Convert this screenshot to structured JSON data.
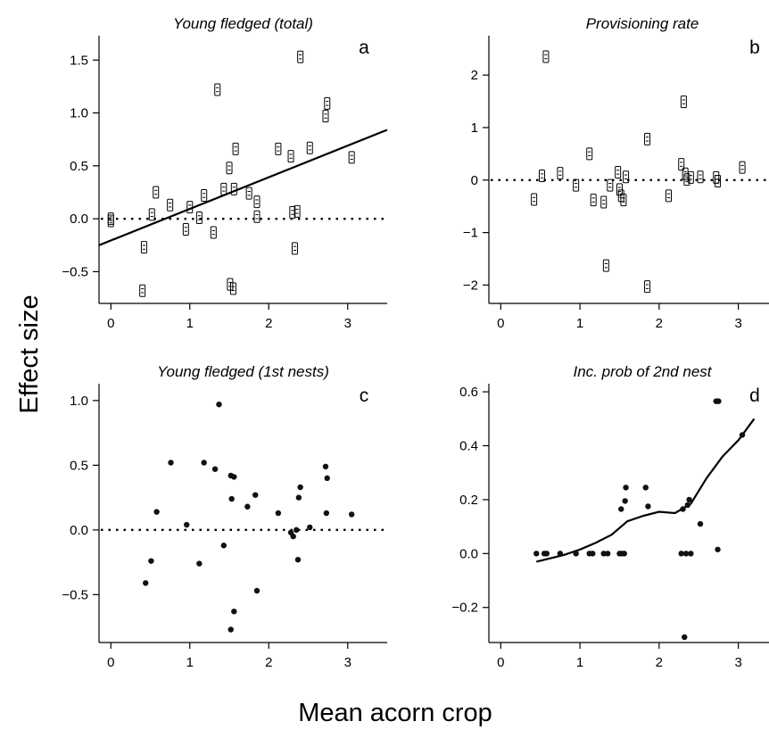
{
  "figure": {
    "ylabel": "Effect size",
    "xlabel": "Mean acorn crop"
  },
  "chart_data": [
    {
      "id": "a",
      "type": "scatter",
      "title": "Young fledged (total)",
      "panel_label": "a",
      "marker": "boxed",
      "xlim": [
        -0.15,
        3.5
      ],
      "ylim": [
        -0.8,
        1.73
      ],
      "xticks": [
        0,
        1,
        2,
        3
      ],
      "xtick_labels": [
        "0",
        "1",
        "2",
        "3"
      ],
      "yticks": [
        -0.5,
        0,
        0.5,
        1,
        1.5
      ],
      "ytick_labels": [
        "−0.5",
        "0.0",
        "0.5",
        "1.0",
        "1.5"
      ],
      "reference_line": 0,
      "fit": {
        "kind": "linear",
        "x": [
          -0.15,
          3.5
        ],
        "y": [
          -0.25,
          0.84
        ]
      },
      "points": [
        [
          0.0,
          0.0
        ],
        [
          0.0,
          -0.02
        ],
        [
          0.42,
          -0.27
        ],
        [
          0.4,
          -0.68
        ],
        [
          0.52,
          0.04
        ],
        [
          0.57,
          0.25
        ],
        [
          0.75,
          0.13
        ],
        [
          0.95,
          -0.1
        ],
        [
          1.0,
          0.11
        ],
        [
          1.12,
          0.01
        ],
        [
          1.18,
          0.22
        ],
        [
          1.3,
          -0.13
        ],
        [
          1.35,
          1.22
        ],
        [
          1.43,
          0.28
        ],
        [
          1.5,
          0.48
        ],
        [
          1.51,
          -0.62
        ],
        [
          1.55,
          -0.66
        ],
        [
          1.56,
          0.28
        ],
        [
          1.58,
          0.66
        ],
        [
          1.75,
          0.24
        ],
        [
          1.85,
          0.16
        ],
        [
          1.85,
          0.02
        ],
        [
          2.12,
          0.66
        ],
        [
          2.28,
          0.59
        ],
        [
          2.3,
          0.06
        ],
        [
          2.33,
          -0.28
        ],
        [
          2.36,
          0.07
        ],
        [
          2.4,
          1.53
        ],
        [
          2.52,
          0.67
        ],
        [
          2.72,
          0.97
        ],
        [
          2.74,
          1.09
        ],
        [
          3.05,
          0.58
        ]
      ]
    },
    {
      "id": "b",
      "type": "scatter",
      "title": "Provisioning rate",
      "panel_label": "b",
      "marker": "boxed",
      "xlim": [
        -0.15,
        3.5
      ],
      "ylim": [
        -2.35,
        2.75
      ],
      "xticks": [
        0,
        1,
        2,
        3
      ],
      "xtick_labels": [
        "0",
        "1",
        "2",
        "3"
      ],
      "yticks": [
        -2,
        -1,
        0,
        1,
        2
      ],
      "ytick_labels": [
        "−2",
        "−1",
        "0",
        "1",
        "2"
      ],
      "reference_line": 0,
      "points": [
        [
          0.42,
          -0.37
        ],
        [
          0.52,
          0.08
        ],
        [
          0.57,
          2.35
        ],
        [
          0.75,
          0.13
        ],
        [
          0.95,
          -0.1
        ],
        [
          1.12,
          0.5
        ],
        [
          1.17,
          -0.38
        ],
        [
          1.3,
          -0.42
        ],
        [
          1.33,
          -1.63
        ],
        [
          1.38,
          -0.1
        ],
        [
          1.48,
          0.15
        ],
        [
          1.5,
          -0.18
        ],
        [
          1.52,
          -0.3
        ],
        [
          1.55,
          -0.38
        ],
        [
          1.58,
          0.06
        ],
        [
          1.85,
          0.78
        ],
        [
          1.85,
          -2.03
        ],
        [
          2.12,
          -0.3
        ],
        [
          2.28,
          0.3
        ],
        [
          2.31,
          1.49
        ],
        [
          2.33,
          0.12
        ],
        [
          2.35,
          0.01
        ],
        [
          2.4,
          0.05
        ],
        [
          2.52,
          0.06
        ],
        [
          2.72,
          0.05
        ],
        [
          2.74,
          -0.02
        ],
        [
          3.05,
          0.24
        ]
      ]
    },
    {
      "id": "c",
      "type": "scatter",
      "title": "Young fledged (1st nests)",
      "panel_label": "c",
      "marker": "dot",
      "xlim": [
        -0.15,
        3.5
      ],
      "ylim": [
        -0.87,
        1.13
      ],
      "xticks": [
        0,
        1,
        2,
        3
      ],
      "xtick_labels": [
        "0",
        "1",
        "2",
        "3"
      ],
      "yticks": [
        -0.5,
        0,
        0.5,
        1
      ],
      "ytick_labels": [
        "−0.5",
        "0.0",
        "0.5",
        "1.0"
      ],
      "reference_line": 0,
      "points": [
        [
          0.44,
          -0.41
        ],
        [
          0.51,
          -0.24
        ],
        [
          0.58,
          0.14
        ],
        [
          0.76,
          0.52
        ],
        [
          0.96,
          0.04
        ],
        [
          1.12,
          -0.26
        ],
        [
          1.18,
          0.52
        ],
        [
          1.32,
          0.47
        ],
        [
          1.37,
          0.97
        ],
        [
          1.43,
          -0.12
        ],
        [
          1.52,
          0.42
        ],
        [
          1.53,
          0.24
        ],
        [
          1.56,
          0.41
        ],
        [
          1.52,
          -0.77
        ],
        [
          1.56,
          -0.63
        ],
        [
          1.73,
          0.18
        ],
        [
          1.83,
          0.27
        ],
        [
          1.85,
          -0.47
        ],
        [
          2.12,
          0.13
        ],
        [
          2.28,
          -0.02
        ],
        [
          2.31,
          -0.05
        ],
        [
          2.35,
          0.0
        ],
        [
          2.37,
          -0.23
        ],
        [
          2.38,
          0.25
        ],
        [
          2.4,
          0.33
        ],
        [
          2.52,
          0.02
        ],
        [
          2.72,
          0.49
        ],
        [
          2.74,
          0.4
        ],
        [
          2.73,
          0.13
        ],
        [
          3.05,
          0.12
        ]
      ]
    },
    {
      "id": "d",
      "type": "scatter",
      "title": "Inc. prob of 2nd nest",
      "panel_label": "d",
      "marker": "dot",
      "xlim": [
        -0.15,
        3.5
      ],
      "ylim": [
        -0.33,
        0.63
      ],
      "xticks": [
        0,
        1,
        2,
        3
      ],
      "xtick_labels": [
        "0",
        "1",
        "2",
        "3"
      ],
      "yticks": [
        -0.2,
        0,
        0.2,
        0.4,
        0.6
      ],
      "ytick_labels": [
        "−0.2",
        "0.0",
        "0.2",
        "0.4",
        "0.6"
      ],
      "fit": {
        "kind": "smooth",
        "x": [
          0.45,
          0.8,
          1.0,
          1.2,
          1.4,
          1.6,
          1.8,
          2.0,
          2.2,
          2.4,
          2.6,
          2.8,
          3.0,
          3.2
        ],
        "y": [
          -0.03,
          -0.005,
          0.015,
          0.04,
          0.07,
          0.12,
          0.14,
          0.155,
          0.15,
          0.185,
          0.28,
          0.36,
          0.42,
          0.5
        ]
      },
      "points": [
        [
          0.45,
          0.0
        ],
        [
          0.55,
          0.0
        ],
        [
          0.58,
          0.0
        ],
        [
          0.75,
          0.0
        ],
        [
          0.95,
          0.0
        ],
        [
          1.12,
          0.0
        ],
        [
          1.16,
          0.0
        ],
        [
          1.3,
          0.0
        ],
        [
          1.35,
          0.0
        ],
        [
          1.5,
          0.0
        ],
        [
          1.52,
          0.165
        ],
        [
          1.53,
          0.0
        ],
        [
          1.56,
          0.0
        ],
        [
          1.57,
          0.195
        ],
        [
          1.58,
          0.245
        ],
        [
          1.83,
          0.245
        ],
        [
          1.86,
          0.175
        ],
        [
          2.28,
          0.0
        ],
        [
          2.3,
          0.165
        ],
        [
          2.32,
          -0.31
        ],
        [
          2.34,
          0.0
        ],
        [
          2.36,
          0.18
        ],
        [
          2.38,
          0.2
        ],
        [
          2.4,
          0.0
        ],
        [
          2.52,
          0.11
        ],
        [
          2.72,
          0.565
        ],
        [
          2.75,
          0.565
        ],
        [
          2.74,
          0.015
        ],
        [
          3.05,
          0.44
        ]
      ]
    }
  ]
}
